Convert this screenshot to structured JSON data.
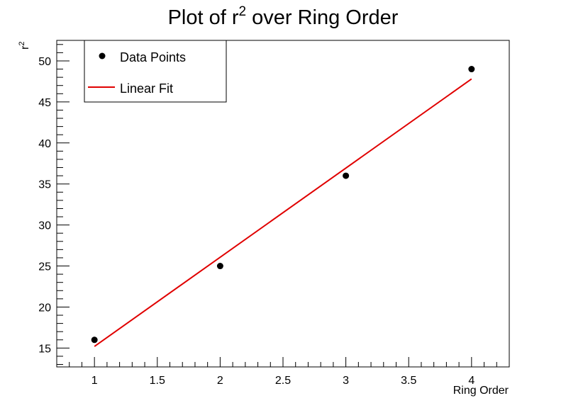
{
  "chart_data": {
    "type": "scatter",
    "title": "Plot of r",
    "title_sup": "2",
    "title_rest": " over Ring Order",
    "xlabel": "Ring Order",
    "ylabel": "r",
    "ylabel_sup": "2",
    "xlim": [
      0.7,
      4.3
    ],
    "ylim": [
      12.7,
      52.5
    ],
    "xticks": [
      1,
      1.5,
      2,
      2.5,
      3,
      3.5,
      4
    ],
    "yticks": [
      15,
      20,
      25,
      30,
      35,
      40,
      45,
      50
    ],
    "series": [
      {
        "name": "Data Points",
        "type": "scatter",
        "color": "#000000",
        "x": [
          1,
          2,
          3,
          4
        ],
        "y": [
          16,
          25,
          36,
          49
        ]
      },
      {
        "name": "Linear Fit",
        "type": "line",
        "color": "#e00000",
        "x": [
          1,
          4
        ],
        "y": [
          15.2,
          47.8
        ]
      }
    ],
    "legend": {
      "placement": "top-left"
    },
    "grid": false
  }
}
